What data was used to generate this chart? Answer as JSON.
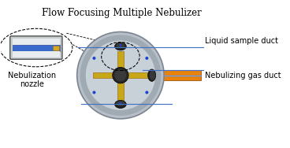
{
  "title": "Flow Focusing Multiple Nebulizer",
  "title_fontsize": 8.5,
  "label_liquid": "Liquid sample duct",
  "label_nebulizing": "Nebulizing gas duct",
  "label_nozzle": "Nebulization\nnozzle",
  "label_fontsize": 7.0,
  "bg_color": "#ffffff",
  "line_color": "#4472c4",
  "orange_color": "#e8820a",
  "dark_gray": "#2c2c2c",
  "silver": "#b8bfc8",
  "dark_silver": "#7a8590",
  "silver2": "#a0aab2",
  "silver3": "#c8d0d8",
  "gold": "#c8a818",
  "gold_edge": "#906000",
  "hub_color": "#282828",
  "nozzle_fill": "#d0d5d8",
  "nozzle_blue": "#3a6acc",
  "nozzle_gold": "#d4a820"
}
